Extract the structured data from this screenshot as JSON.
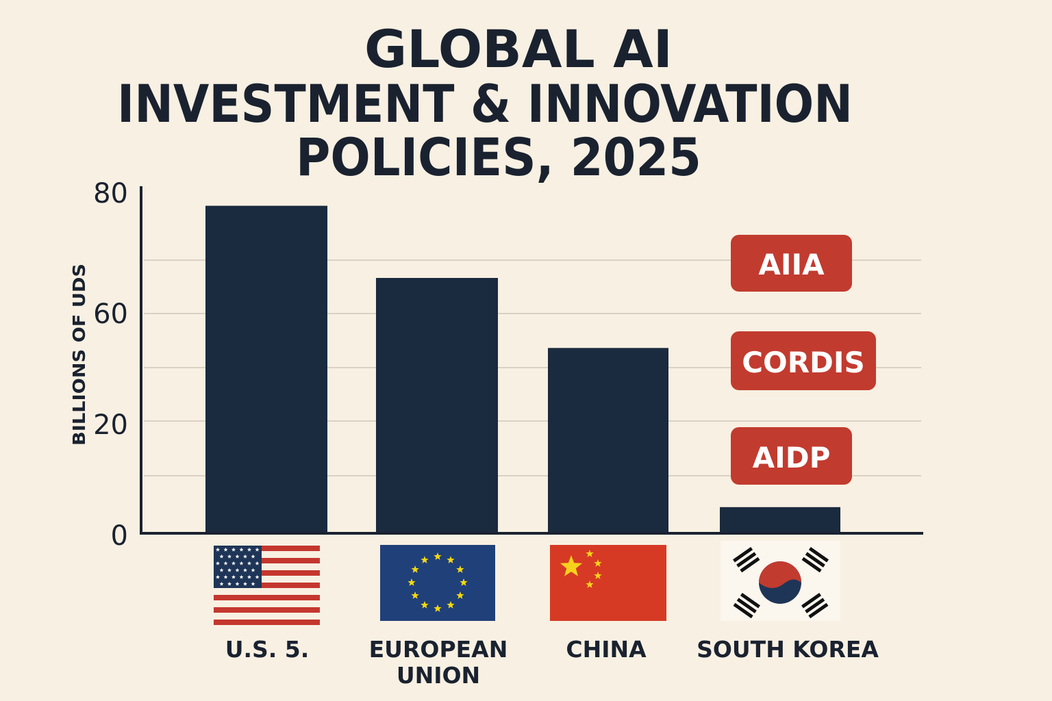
{
  "chart_data": {
    "type": "bar",
    "title": [
      "GLOBAL AI",
      "INVESTMENT & INNOVATION",
      "POLICIES, 2025"
    ],
    "ylabel": "BILLIONS OF UDS",
    "xlabel": "",
    "ylim": [
      0,
      80
    ],
    "y_tick_labels": [
      "80",
      "60",
      "20",
      "0"
    ],
    "grid": true,
    "categories": [
      "U.S. 5.",
      "EUROPEAN UNION",
      "CHINA",
      "SOUTH KOREA"
    ],
    "category_lines": [
      [
        "U.S. 5."
      ],
      [
        "EUROPEAN",
        "UNION"
      ],
      [
        "CHINA"
      ],
      [
        "SOUTH KOREA"
      ]
    ],
    "flags": [
      "us-flag-icon",
      "eu-flag-icon",
      "china-flag-icon",
      "south-korea-flag-icon"
    ],
    "values": [
      77,
      60,
      43.5,
      6
    ],
    "annotations": [
      "AIIA",
      "CORDIS",
      "AIDP"
    ],
    "colors": {
      "bar": "#1a2a3f",
      "badge": "#c23b2f",
      "background": "#f8f0e2",
      "grid": "#d9d2c4"
    }
  }
}
